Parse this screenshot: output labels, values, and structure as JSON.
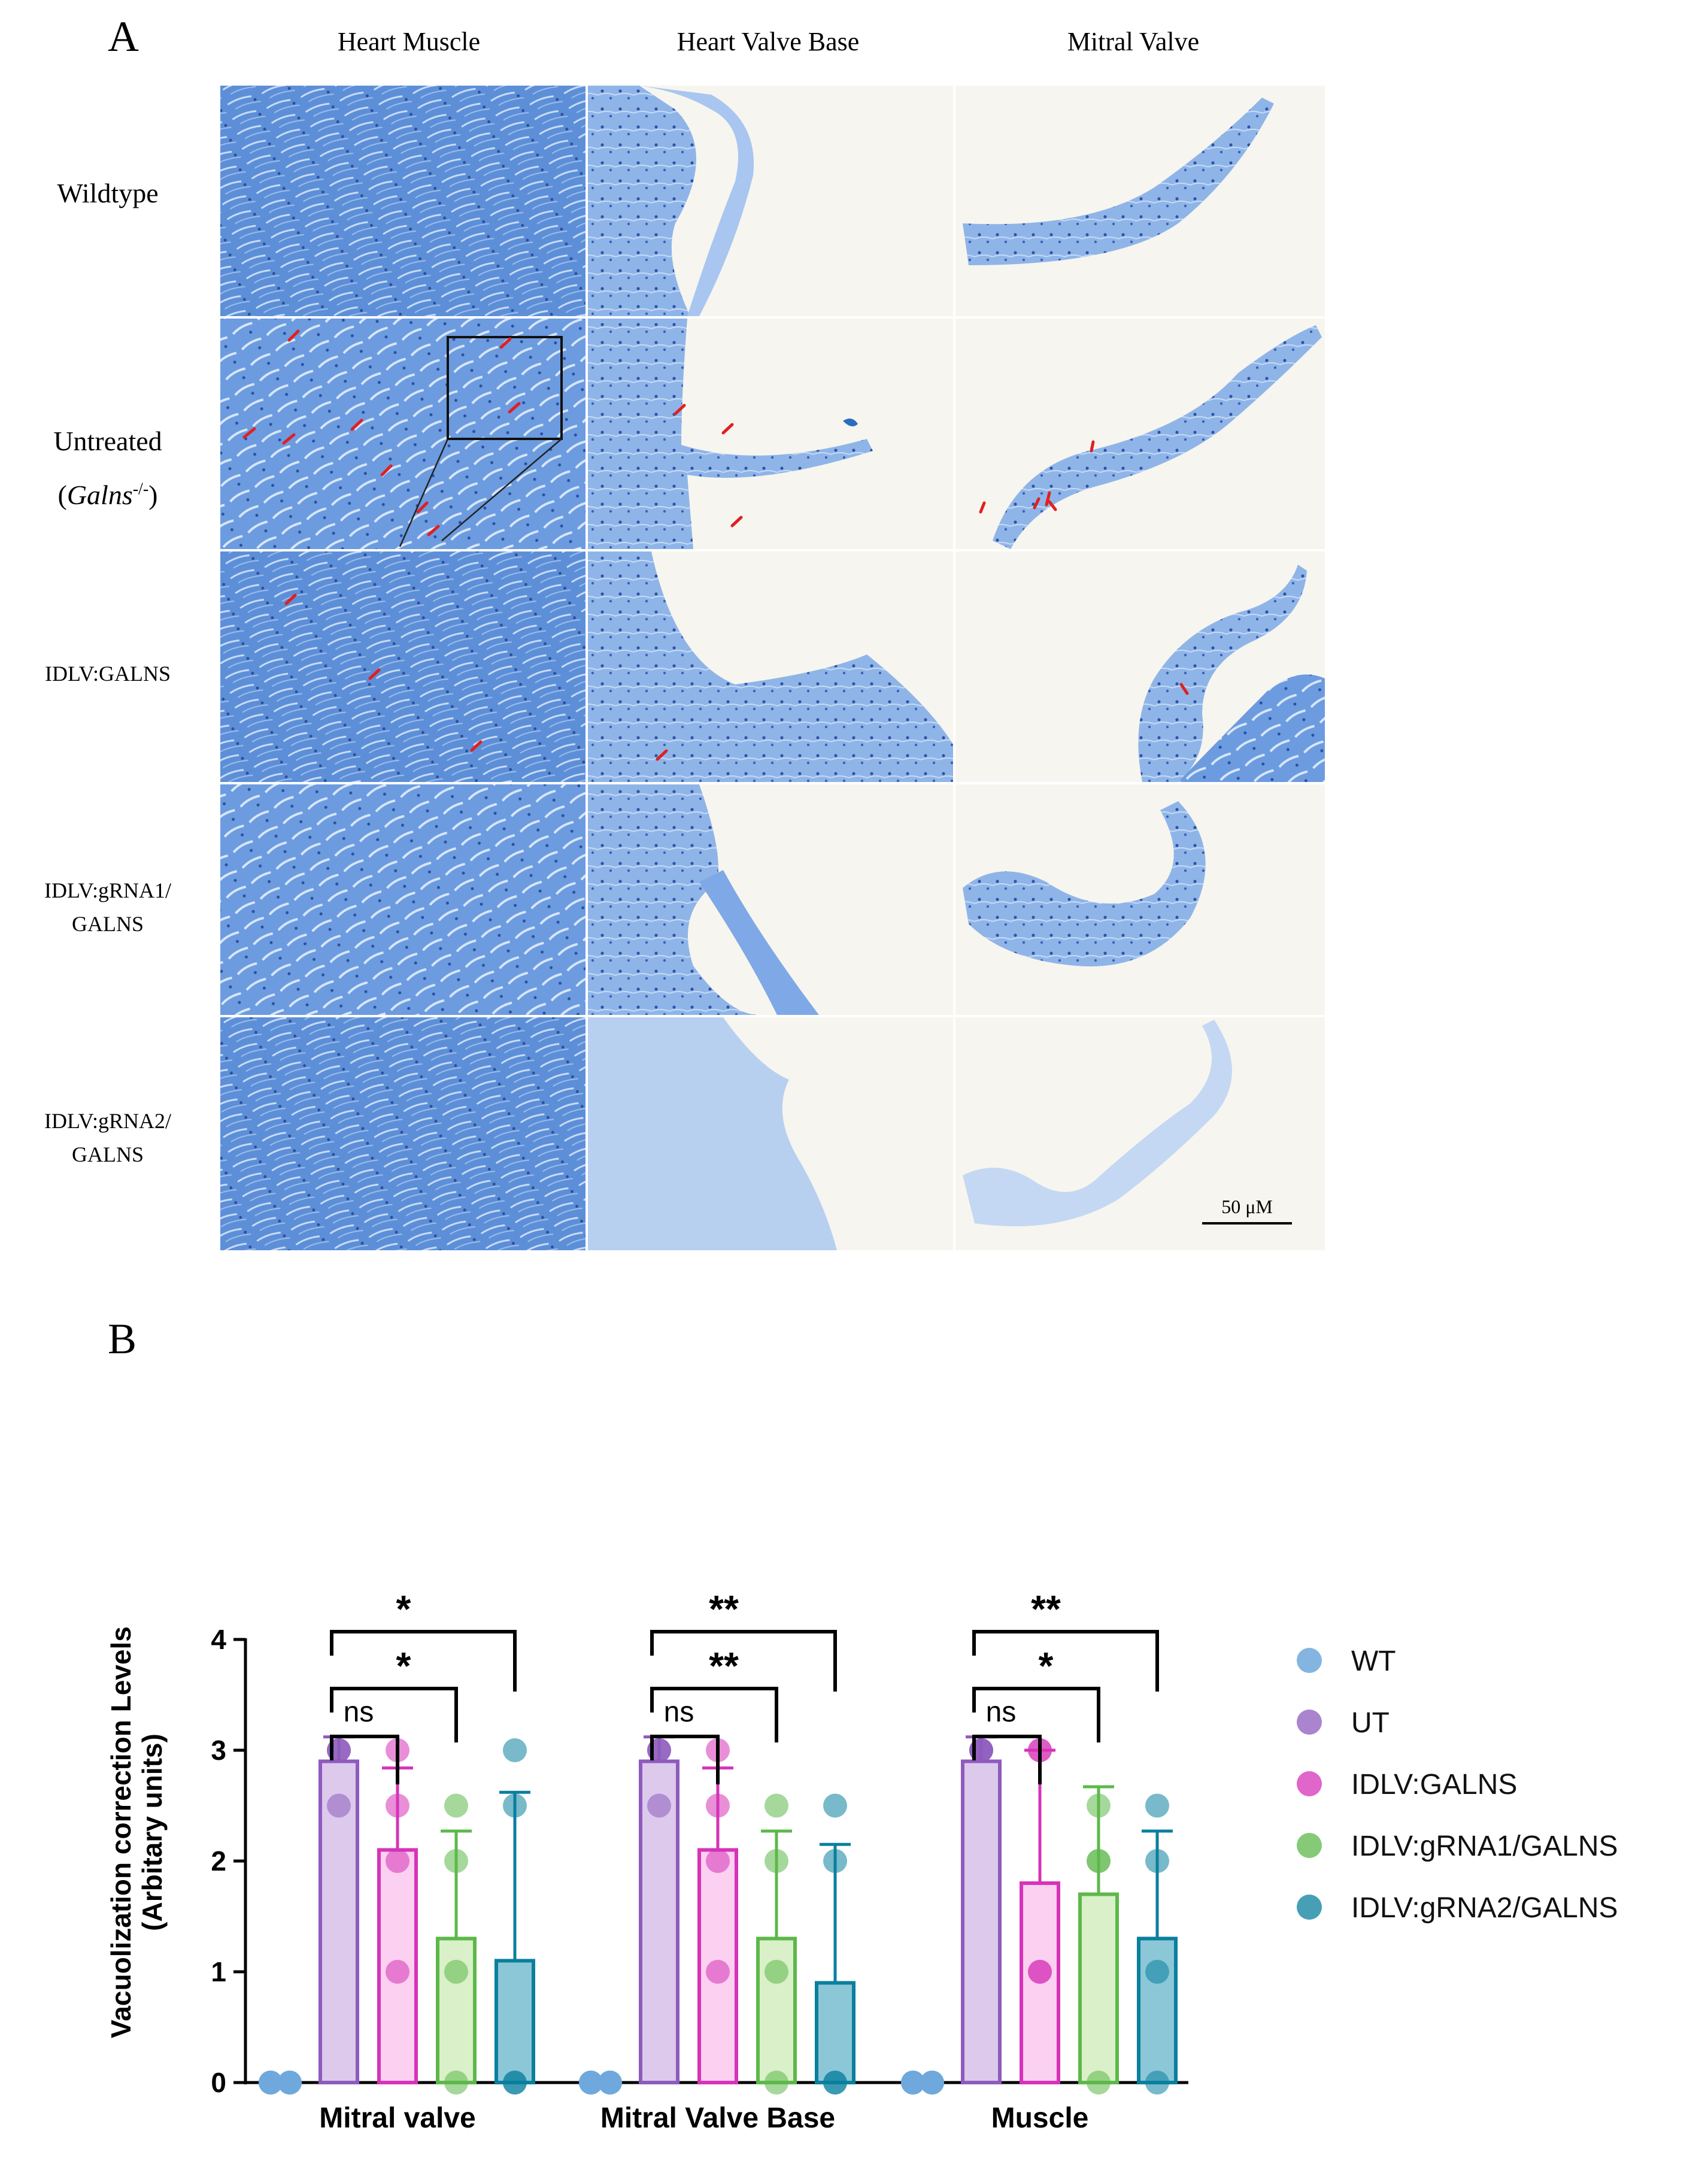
{
  "figure": {
    "panel_a_label": "A",
    "panel_b_label": "B",
    "columns": [
      "Heart Muscle",
      "Heart Valve Base",
      "Mitral Valve"
    ],
    "rows": [
      "Wildtype",
      "Untreated",
      "IDLV:GALNS",
      "IDLV:gRNA1/ GALNS",
      "IDLV:gRNA2/ GALNS"
    ],
    "row2_sublabel": {
      "open": "(",
      "gene": "Galns",
      "sup": "-/-",
      "close": ")"
    },
    "row_label_lines": {
      "gRNA1_l1": "IDLV:gRNA1/",
      "gRNA1_l2": "GALNS",
      "gRNA2_l1": "IDLV:gRNA2/",
      "gRNA2_l2": "GALNS"
    },
    "scale_bar": "50 μM"
  },
  "chart_data": {
    "type": "bar",
    "categories": [
      "Mitral valve",
      "Mitral Valve Base",
      "Muscle"
    ],
    "ylabel": "Vacuolization correction Levels (Arbitary units)",
    "ylabel_lines": [
      "Vacuolization correction Levels",
      "(Arbitary units)"
    ],
    "ylim": [
      0,
      4
    ],
    "yticks": [
      "0",
      "1",
      "2",
      "3",
      "4"
    ],
    "legend_placement": "right",
    "series": [
      {
        "name": "WT",
        "color": "#6fa8dc",
        "fill": "#bcd6ef",
        "values": [
          0,
          0,
          0
        ],
        "errors": [
          0,
          0,
          0
        ],
        "points": [
          [
            0,
            0,
            0,
            0
          ],
          [
            0,
            0,
            0,
            0
          ],
          [
            0,
            0,
            0,
            0
          ]
        ]
      },
      {
        "name": "UT",
        "color": "#8e5bbd",
        "fill": "#dcc9ec",
        "values": [
          2.9,
          2.9,
          2.9
        ],
        "errors": [
          0.22,
          0.22,
          0.22
        ],
        "points": [
          [
            3,
            3,
            3,
            2.5
          ],
          [
            3,
            3,
            3,
            2.5
          ],
          [
            3,
            3,
            3,
            3
          ]
        ]
      },
      {
        "name": "IDLV:GALNS",
        "color": "#d633b8",
        "fill": "#fbd0f0",
        "values": [
          2.1,
          2.1,
          1.8
        ],
        "errors": [
          0.74,
          0.74,
          1.2
        ],
        "points": [
          [
            3,
            2.5,
            2,
            1
          ],
          [
            3,
            2.5,
            2,
            1
          ],
          [
            3,
            3,
            1,
            1
          ]
        ]
      },
      {
        "name": "IDLV:gRNA1/GALNS",
        "color": "#5db84a",
        "fill": "#d9f0c8",
        "values": [
          1.3,
          1.3,
          1.7
        ],
        "errors": [
          0.97,
          0.97,
          0.97
        ],
        "points": [
          [
            2.5,
            2,
            1,
            0
          ],
          [
            2.5,
            2,
            1,
            0
          ],
          [
            2.5,
            2,
            2,
            0
          ]
        ]
      },
      {
        "name": "IDLV:gRNA2/GALNS",
        "color": "#0a7f9e",
        "fill": "#8cc7d8",
        "values": [
          1.1,
          0.9,
          1.3
        ],
        "errors": [
          1.52,
          1.25,
          0.97
        ],
        "points": [
          [
            3,
            2.5,
            0,
            0
          ],
          [
            2.5,
            2,
            0,
            0
          ],
          [
            2.5,
            2,
            1,
            0
          ]
        ]
      }
    ],
    "significance": [
      {
        "group": 0,
        "to": 4,
        "label": "*"
      },
      {
        "group": 0,
        "to": 3,
        "label": "*"
      },
      {
        "group": 0,
        "to": 2,
        "label": "ns"
      },
      {
        "group": 1,
        "to": 4,
        "label": "**"
      },
      {
        "group": 1,
        "to": 3,
        "label": "**"
      },
      {
        "group": 1,
        "to": 2,
        "label": "ns"
      },
      {
        "group": 2,
        "to": 4,
        "label": "**"
      },
      {
        "group": 2,
        "to": 3,
        "label": "*"
      },
      {
        "group": 2,
        "to": 2,
        "label": "ns"
      }
    ]
  }
}
